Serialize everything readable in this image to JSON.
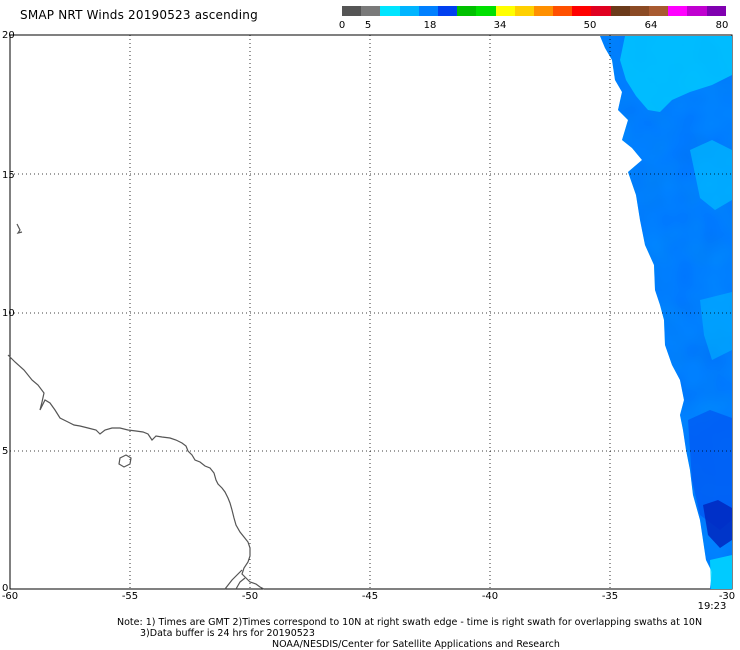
{
  "title": "SMAP NRT Winds 20190523 ascending",
  "colorbar": {
    "labels": [
      "0",
      "5",
      "18",
      "34",
      "50",
      "64",
      "80"
    ],
    "segments": [
      {
        "color": "#555555"
      },
      {
        "color": "#7a7a7a"
      },
      {
        "color": "#00e5ff"
      },
      {
        "color": "#00b5ff"
      },
      {
        "color": "#0080ff"
      },
      {
        "color": "#0040f0"
      },
      {
        "color": "#00c000"
      },
      {
        "color": "#00e000"
      },
      {
        "color": "#ffff00"
      },
      {
        "color": "#ffd000"
      },
      {
        "color": "#ff9000"
      },
      {
        "color": "#ff5000"
      },
      {
        "color": "#ff0000"
      },
      {
        "color": "#e00020"
      },
      {
        "color": "#6b3a1a"
      },
      {
        "color": "#8b4a24"
      },
      {
        "color": "#a85a30"
      },
      {
        "color": "#ff00ff"
      },
      {
        "color": "#c000d0"
      },
      {
        "color": "#8000b0"
      }
    ]
  },
  "map": {
    "lon_range": [
      -60,
      -30
    ],
    "lat_range": [
      0,
      20
    ],
    "x_tick_labels": [
      "-60",
      "-55",
      "-50",
      "-45",
      "-40",
      "-35",
      "-30"
    ],
    "y_tick_labels": [
      "0",
      "5",
      "10",
      "15",
      "20"
    ],
    "swath_colors": {
      "light": "#00d0ff",
      "mid": "#0090ff",
      "deep": "#0050f0",
      "darkest": "#0030d0"
    }
  },
  "time_label": "19:23",
  "notes": {
    "line1": "Note: 1) Times are GMT 2)Times correspond to 10N at right swath edge - time is right swath for overlapping swaths at 10N",
    "line2": "3)Data buffer is 24 hrs for 20190523",
    "line3": "NOAA/NESDIS/Center for Satellite Applications and Research"
  }
}
